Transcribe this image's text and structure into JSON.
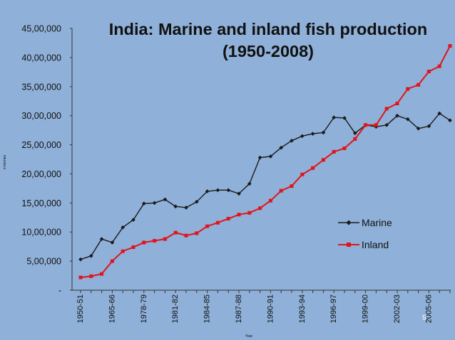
{
  "chart_data": {
    "type": "line",
    "title_line1": "India: Marine and inland fish production",
    "title_line2": "(1950-2008)",
    "ylabel": "in tonnes",
    "xlabel": "Year",
    "ylim": [
      0,
      4500000
    ],
    "y_ticks": [
      {
        "value": 0,
        "label": "-"
      },
      {
        "value": 500000,
        "label": "5,00,000"
      },
      {
        "value": 1000000,
        "label": "10,00,000"
      },
      {
        "value": 1500000,
        "label": "15,00,000"
      },
      {
        "value": 2000000,
        "label": "20,00,000"
      },
      {
        "value": 2500000,
        "label": "25,00,000"
      },
      {
        "value": 3000000,
        "label": "30,00,000"
      },
      {
        "value": 3500000,
        "label": "35,00,000"
      },
      {
        "value": 4000000,
        "label": "40,00,000"
      },
      {
        "value": 4500000,
        "label": "45,00,000"
      }
    ],
    "x_tick_labels": [
      {
        "index": 0,
        "label": "1950-51"
      },
      {
        "index": 3,
        "label": "1965-66"
      },
      {
        "index": 6,
        "label": "1978-79"
      },
      {
        "index": 9,
        "label": "1981-82"
      },
      {
        "index": 12,
        "label": "1984-85"
      },
      {
        "index": 15,
        "label": "1987-88"
      },
      {
        "index": 18,
        "label": "1990-91"
      },
      {
        "index": 21,
        "label": "1993-94"
      },
      {
        "index": 24,
        "label": "1996-97"
      },
      {
        "index": 27,
        "label": "1999-00"
      },
      {
        "index": 30,
        "label": "2002-03"
      },
      {
        "index": 33,
        "label": "2005-06"
      }
    ],
    "point_count": 36,
    "grid": false,
    "legend_position": "right",
    "series": [
      {
        "name": "Marine",
        "color": "#1a1a1a",
        "marker": "diamond",
        "values": [
          530000,
          590000,
          880000,
          820000,
          1080000,
          1210000,
          1490000,
          1500000,
          1560000,
          1440000,
          1420000,
          1520000,
          1700000,
          1720000,
          1720000,
          1660000,
          1830000,
          2280000,
          2300000,
          2450000,
          2570000,
          2650000,
          2690000,
          2710000,
          2970000,
          2960000,
          2700000,
          2840000,
          2810000,
          2840000,
          3000000,
          2940000,
          2780000,
          2820000,
          3040000,
          2920000
        ]
      },
      {
        "name": "Inland",
        "color": "#e0151c",
        "marker": "square",
        "values": [
          220000,
          240000,
          280000,
          500000,
          670000,
          740000,
          820000,
          850000,
          880000,
          990000,
          940000,
          980000,
          1100000,
          1160000,
          1230000,
          1300000,
          1330000,
          1410000,
          1540000,
          1710000,
          1790000,
          1990000,
          2100000,
          2240000,
          2380000,
          2440000,
          2600000,
          2840000,
          2840000,
          3120000,
          3210000,
          3460000,
          3530000,
          3760000,
          3850000,
          4200000
        ]
      }
    ]
  },
  "page_number": "9"
}
